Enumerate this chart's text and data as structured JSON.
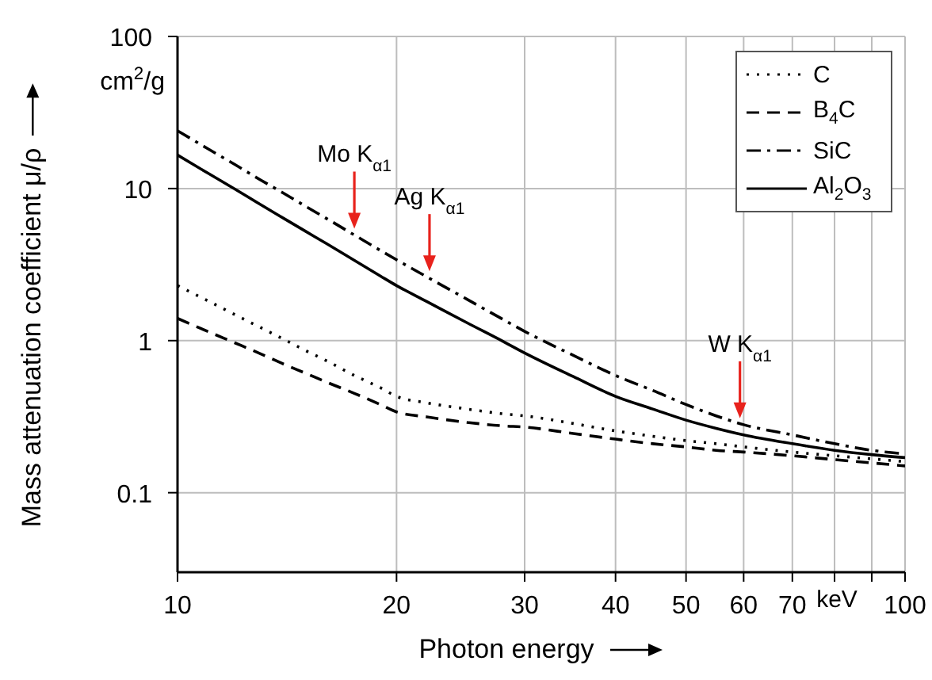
{
  "chart_data": {
    "type": "line",
    "xlabel": "Photon energy",
    "ylabel": "Mass attenuation coefficient μ/ρ",
    "x": [
      10,
      11,
      12,
      13,
      14,
      15,
      16,
      17.5,
      19,
      20,
      22,
      25,
      28,
      30,
      35,
      40,
      45,
      50,
      55,
      60,
      70,
      80,
      90,
      100
    ],
    "series": [
      {
        "name": "C",
        "color": "#000000",
        "line_style": "dotted",
        "values": [
          2.3,
          1.83,
          1.48,
          1.22,
          1.02,
          0.86,
          0.74,
          0.59,
          0.49,
          0.43,
          0.39,
          0.355,
          0.33,
          0.32,
          0.285,
          0.255,
          0.235,
          0.22,
          0.21,
          0.2,
          0.185,
          0.175,
          0.167,
          0.16
        ]
      },
      {
        "name": "B$_{4}$C",
        "color": "#000000",
        "line_style": "dashed",
        "values": [
          1.4,
          1.15,
          0.965,
          0.82,
          0.7,
          0.61,
          0.535,
          0.45,
          0.38,
          0.34,
          0.315,
          0.29,
          0.275,
          0.27,
          0.245,
          0.225,
          0.21,
          0.2,
          0.19,
          0.185,
          0.175,
          0.165,
          0.157,
          0.15
        ]
      },
      {
        "name": "SiC",
        "color": "#000000",
        "line_style": "dashdot",
        "values": [
          24,
          18.3,
          14.35,
          11.4,
          9.3,
          7.64,
          6.38,
          4.95,
          3.92,
          3.4,
          2.63,
          1.87,
          1.38,
          1.15,
          0.8,
          0.59,
          0.47,
          0.38,
          0.32,
          0.28,
          0.24,
          0.21,
          0.19,
          0.18
        ]
      },
      {
        "name": "Al$_{2}$O$_{3}$",
        "color": "#000000",
        "line_style": "solid",
        "values": [
          16.6,
          12.65,
          9.9,
          7.85,
          6.36,
          5.23,
          4.36,
          3.37,
          2.66,
          2.3,
          1.81,
          1.31,
          0.99,
          0.83,
          0.58,
          0.43,
          0.355,
          0.3,
          0.265,
          0.24,
          0.21,
          0.19,
          0.178,
          0.17
        ]
      }
    ],
    "annotations": [
      "cm$^{2}$/g",
      "keV",
      {
        "text": "Mo K$_{α1}$",
        "x": 17.5,
        "y": 4.95
      },
      {
        "text": "Ag K$_{α1}$",
        "x": 22.2,
        "y": 2.6
      },
      {
        "text": "W K$_{α1}$",
        "x": 59.3,
        "y": 0.28
      }
    ],
    "log": "xy",
    "xlim": [
      10,
      100
    ],
    "ylim": [
      0.03,
      100
    ],
    "xticks": [
      10,
      20,
      30,
      40,
      50,
      60,
      70,
      {
        "value": 80,
        "label": null
      },
      {
        "value": 90,
        "label": null
      },
      100
    ],
    "yticks": [
      0.1,
      1,
      10,
      100
    ],
    "grid": true,
    "legend": "top right",
    "marker": "none"
  }
}
